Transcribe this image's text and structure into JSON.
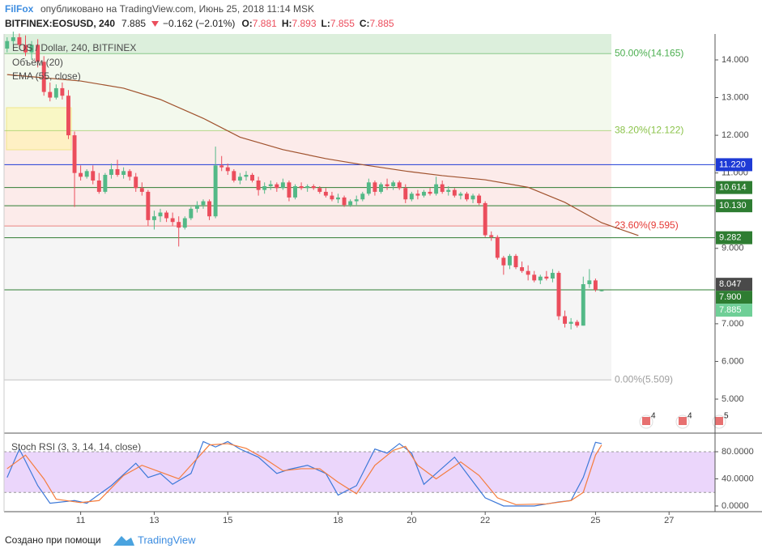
{
  "header": {
    "author": "FilFox",
    "published": "опубликовано на TradingView.com, Июнь 25, 2018 11:14 MSK"
  },
  "ticker": {
    "symbol": "BITFINEX:EOSUSD, 240",
    "last": "7.885",
    "change": "−0.162 (−2.01%)",
    "ohlc": [
      {
        "key": "O:",
        "value": "7.881"
      },
      {
        "key": "H:",
        "value": "7.893"
      },
      {
        "key": "L:",
        "value": "7.855"
      },
      {
        "key": "C:",
        "value": "7.885"
      }
    ]
  },
  "footer": {
    "text": "Создано при помощи",
    "brand": "TradingView"
  },
  "chart_data": [
    {
      "type": "candlestick",
      "title": "EOS / Dollar, 240, BITFINEX",
      "indicators": [
        "Объём (20)",
        "EMA (55, close)"
      ],
      "up_color": "#53b987",
      "down_color": "#eb4d5c",
      "xlim": [
        -0.5,
        115.5
      ],
      "ylim": [
        4.098,
        14.687
      ],
      "yticks": [
        {
          "value": 5,
          "label": "5.000"
        },
        {
          "value": 6,
          "label": "6.000"
        },
        {
          "value": 7,
          "label": "7.000"
        },
        {
          "value": 9,
          "label": "9.000"
        },
        {
          "value": 11,
          "label": "11.000"
        },
        {
          "value": 12,
          "label": "12.000"
        },
        {
          "value": 13,
          "label": "13.000"
        },
        {
          "value": 14,
          "label": "14.000"
        }
      ],
      "candles": [
        [
          14.3,
          14.6,
          14.2,
          14.5
        ],
        [
          14.5,
          14.75,
          14.4,
          14.6
        ],
        [
          14.6,
          14.7,
          14.3,
          14.4
        ],
        [
          14.4,
          14.65,
          14.1,
          14.2
        ],
        [
          14.2,
          14.5,
          14.0,
          14.4
        ],
        [
          14.4,
          14.55,
          13.8,
          13.95
        ],
        [
          13.95,
          14.1,
          13.05,
          13.15
        ],
        [
          13.15,
          13.4,
          12.9,
          13.0
        ],
        [
          13.0,
          13.35,
          12.95,
          13.25
        ],
        [
          13.25,
          13.4,
          12.95,
          13.05
        ],
        [
          13.05,
          13.2,
          11.9,
          12.0
        ],
        [
          12.0,
          12.1,
          10.1,
          11.0
        ],
        [
          11.0,
          11.2,
          10.8,
          10.9
        ],
        [
          10.9,
          11.1,
          10.85,
          11.05
        ],
        [
          11.05,
          11.2,
          10.7,
          10.8
        ],
        [
          10.8,
          11.0,
          10.45,
          10.5
        ],
        [
          10.5,
          11.0,
          10.45,
          10.95
        ],
        [
          10.95,
          11.25,
          10.85,
          11.1
        ],
        [
          11.1,
          11.35,
          10.9,
          10.95
        ],
        [
          10.95,
          11.15,
          10.85,
          11.05
        ],
        [
          11.05,
          11.1,
          10.8,
          10.9
        ],
        [
          10.9,
          11.0,
          10.5,
          10.6
        ],
        [
          10.6,
          10.75,
          10.4,
          10.5
        ],
        [
          10.5,
          10.55,
          9.6,
          9.75
        ],
        [
          9.75,
          10.0,
          9.5,
          9.85
        ],
        [
          9.85,
          10.05,
          9.7,
          9.95
        ],
        [
          9.95,
          10.0,
          9.7,
          9.8
        ],
        [
          9.8,
          9.95,
          9.6,
          9.7
        ],
        [
          9.7,
          9.85,
          9.05,
          9.55
        ],
        [
          9.55,
          9.85,
          9.5,
          9.8
        ],
        [
          9.8,
          10.1,
          9.75,
          10.05
        ],
        [
          10.05,
          10.25,
          9.95,
          10.15
        ],
        [
          10.15,
          10.3,
          10.05,
          10.25
        ],
        [
          10.25,
          10.3,
          9.75,
          9.85
        ],
        [
          9.85,
          11.7,
          9.8,
          11.2
        ],
        [
          11.2,
          11.45,
          11.05,
          11.15
        ],
        [
          11.15,
          11.25,
          10.95,
          11.05
        ],
        [
          11.05,
          11.1,
          10.75,
          10.8
        ],
        [
          10.8,
          11.0,
          10.7,
          10.9
        ],
        [
          10.9,
          11.05,
          10.8,
          10.95
        ],
        [
          10.95,
          11.0,
          10.75,
          10.8
        ],
        [
          10.8,
          10.9,
          10.4,
          10.55
        ],
        [
          10.55,
          10.75,
          10.45,
          10.65
        ],
        [
          10.65,
          10.8,
          10.55,
          10.7
        ],
        [
          10.7,
          10.75,
          10.5,
          10.6
        ],
        [
          10.6,
          10.85,
          10.55,
          10.75
        ],
        [
          10.75,
          10.8,
          10.25,
          10.35
        ],
        [
          10.35,
          10.7,
          10.3,
          10.65
        ],
        [
          10.65,
          10.75,
          10.55,
          10.6
        ],
        [
          10.6,
          10.7,
          10.5,
          10.65
        ],
        [
          10.65,
          10.7,
          10.55,
          10.6
        ],
        [
          10.6,
          10.65,
          10.45,
          10.5
        ],
        [
          10.5,
          10.6,
          10.35,
          10.4
        ],
        [
          10.4,
          10.5,
          10.25,
          10.3
        ],
        [
          10.3,
          10.45,
          10.2,
          10.35
        ],
        [
          10.35,
          10.4,
          10.1,
          10.15
        ],
        [
          10.15,
          10.3,
          10.1,
          10.25
        ],
        [
          10.25,
          10.4,
          10.15,
          10.3
        ],
        [
          10.3,
          10.5,
          10.25,
          10.45
        ],
        [
          10.45,
          10.85,
          10.4,
          10.75
        ],
        [
          10.75,
          10.8,
          10.4,
          10.5
        ],
        [
          10.5,
          10.75,
          10.45,
          10.7
        ],
        [
          10.7,
          10.85,
          10.55,
          10.65
        ],
        [
          10.65,
          10.8,
          10.55,
          10.75
        ],
        [
          10.75,
          10.8,
          10.55,
          10.6
        ],
        [
          10.6,
          10.7,
          10.2,
          10.3
        ],
        [
          10.3,
          10.5,
          10.25,
          10.45
        ],
        [
          10.45,
          10.55,
          10.3,
          10.4
        ],
        [
          10.4,
          10.55,
          10.35,
          10.5
        ],
        [
          10.5,
          10.6,
          10.4,
          10.45
        ],
        [
          10.45,
          10.9,
          10.4,
          10.7
        ],
        [
          10.7,
          10.8,
          10.45,
          10.5
        ],
        [
          10.5,
          10.65,
          10.4,
          10.55
        ],
        [
          10.55,
          10.6,
          10.35,
          10.4
        ],
        [
          10.4,
          10.5,
          10.3,
          10.45
        ],
        [
          10.45,
          10.5,
          10.25,
          10.3
        ],
        [
          10.3,
          10.45,
          10.2,
          10.4
        ],
        [
          10.4,
          10.45,
          10.15,
          10.2
        ],
        [
          10.2,
          10.25,
          9.3,
          9.35
        ],
        [
          9.35,
          9.45,
          9.2,
          9.3
        ],
        [
          9.3,
          9.35,
          8.7,
          8.75
        ],
        [
          8.75,
          8.8,
          8.3,
          8.55
        ],
        [
          8.55,
          8.85,
          8.45,
          8.8
        ],
        [
          8.8,
          8.85,
          8.45,
          8.5
        ],
        [
          8.5,
          8.65,
          8.35,
          8.4
        ],
        [
          8.4,
          8.55,
          8.15,
          8.3
        ],
        [
          8.3,
          8.4,
          8.1,
          8.15
        ],
        [
          8.15,
          8.3,
          8.05,
          8.25
        ],
        [
          8.25,
          8.4,
          8.15,
          8.2
        ],
        [
          8.2,
          8.45,
          8.1,
          8.35
        ],
        [
          8.35,
          8.4,
          7.1,
          7.2
        ],
        [
          7.2,
          7.35,
          6.9,
          7.0
        ],
        [
          7.0,
          7.15,
          6.85,
          7.05
        ],
        [
          7.05,
          7.1,
          6.9,
          6.95
        ],
        [
          6.95,
          8.25,
          6.95,
          8.05
        ],
        [
          8.05,
          8.45,
          7.95,
          8.15
        ],
        [
          8.15,
          8.2,
          7.85,
          7.9
        ],
        [
          7.881,
          7.893,
          7.855,
          7.885
        ]
      ],
      "ema": {
        "color": "#a0522d",
        "x": [
          0,
          12,
          19,
          25,
          32,
          38,
          45,
          52,
          58,
          65,
          71,
          78,
          85,
          91,
          97,
          103
        ],
        "values": [
          13.61,
          13.44,
          13.25,
          12.95,
          12.45,
          11.95,
          11.62,
          11.38,
          11.22,
          11.05,
          10.93,
          10.82,
          10.62,
          10.22,
          9.68,
          9.34
        ]
      },
      "fib_levels": [
        {
          "value": 14.165,
          "label": "50.00%(14.165)",
          "color": "#4caf50"
        },
        {
          "value": 12.122,
          "label": "38.20%(12.122)",
          "color": "#8bc34a"
        },
        {
          "value": 9.595,
          "label": "23.60%(9.595)",
          "color": "#e53935"
        },
        {
          "value": 5.509,
          "label": "0.00%(5.509)",
          "color": "#9e9e9e"
        }
      ],
      "price_lines": [
        {
          "value": 11.22,
          "label": "11.220",
          "color": "#1e3bd6",
          "line": true
        },
        {
          "value": 10.614,
          "label": "10.614",
          "color": "#2e7d32",
          "line": true
        },
        {
          "value": 10.13,
          "label": "10.130",
          "color": "#2e7d32",
          "line": true
        },
        {
          "value": 9.282,
          "label": "9.282",
          "color": "#2e7d32",
          "line": true
        },
        {
          "value": 8.047,
          "label": "8.047",
          "color": "#4a4a4a",
          "line": false
        },
        {
          "value": 7.9,
          "label": "7.900",
          "color": "#2e7d32",
          "line": true
        },
        {
          "value": 7.885,
          "label": "7.885",
          "color": "#6fcf97",
          "line": false
        }
      ],
      "events": [
        "4",
        "4",
        "5"
      ]
    },
    {
      "type": "line",
      "title": "Stoch RSI (3, 3, 14, 14, close)",
      "xlim": [
        -0.5,
        115.5
      ],
      "ylim": [
        -8.4,
        101.5
      ],
      "xticks": [
        {
          "value": 12,
          "label": "11"
        },
        {
          "value": 24,
          "label": "13"
        },
        {
          "value": 36,
          "label": "15"
        },
        {
          "value": 54,
          "label": "18"
        },
        {
          "value": 66,
          "label": "20"
        },
        {
          "value": 78,
          "label": "22"
        },
        {
          "value": 96,
          "label": "25"
        },
        {
          "value": 108,
          "label": "27"
        }
      ],
      "yticks": [
        {
          "value": 80,
          "label": "80.0000"
        },
        {
          "value": 40,
          "label": "40.0000"
        },
        {
          "value": 0,
          "label": "0.0000"
        }
      ],
      "band": [
        20,
        80
      ],
      "band_color": "#e4c8fa",
      "series": [
        {
          "color": "#3c78d8",
          "x": [
            0,
            2,
            5,
            7,
            11,
            13,
            17,
            21,
            23,
            25,
            27,
            30,
            32,
            34,
            36,
            38,
            41,
            44,
            46,
            49,
            52,
            54,
            57,
            60,
            62,
            64,
            66,
            68,
            70,
            73,
            76,
            78,
            81,
            86,
            90,
            92,
            94,
            96,
            97
          ],
          "values": [
            42,
            84,
            30,
            4,
            8,
            4,
            30,
            63,
            42,
            48,
            32,
            48,
            95,
            87,
            95,
            84,
            72,
            48,
            54,
            60,
            48,
            16,
            30,
            84,
            78,
            92,
            78,
            32,
            48,
            72,
            36,
            12,
            0,
            0,
            6,
            8,
            42,
            94,
            92
          ]
        },
        {
          "color": "#f57c3c",
          "x": [
            0,
            3,
            6,
            8,
            12,
            15,
            19,
            22,
            25,
            28,
            31,
            33,
            36,
            39,
            42,
            45,
            48,
            51,
            54,
            57,
            60,
            63,
            65,
            67,
            70,
            74,
            77,
            80,
            83,
            88,
            92,
            94,
            96,
            97
          ],
          "values": [
            55,
            75,
            40,
            10,
            5,
            8,
            45,
            60,
            50,
            40,
            70,
            90,
            92,
            85,
            70,
            52,
            55,
            55,
            35,
            18,
            60,
            82,
            88,
            60,
            40,
            65,
            45,
            12,
            2,
            3,
            8,
            20,
            75,
            90
          ]
        }
      ]
    }
  ]
}
